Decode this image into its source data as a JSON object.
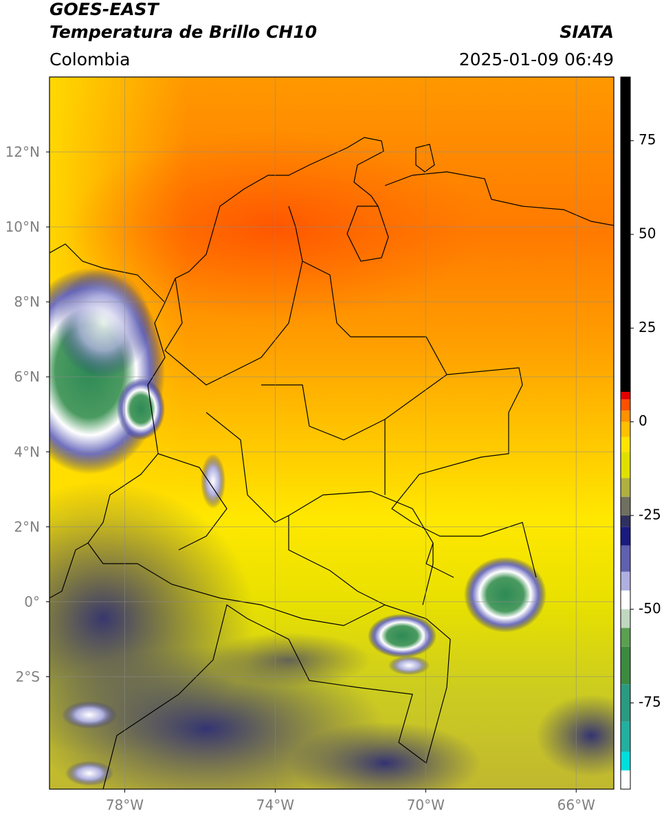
{
  "header": {
    "title": "GOES-EAST",
    "subtitle": "Temperatura de Brillo CH10",
    "region": "Colombia",
    "source": "SIATA",
    "datetime": "2025-01-09 06:49"
  },
  "map": {
    "lon_range": [
      -80,
      -65
    ],
    "lat_range": [
      -5,
      14
    ],
    "grid": true,
    "lon_ticks": [
      {
        "value": -78,
        "label": "78°W"
      },
      {
        "value": -74,
        "label": "74°W"
      },
      {
        "value": -70,
        "label": "70°W"
      },
      {
        "value": -66,
        "label": "66°W"
      }
    ],
    "lat_ticks": [
      {
        "value": 12,
        "label": "12°N"
      },
      {
        "value": 10,
        "label": "10°N"
      },
      {
        "value": 8,
        "label": "8°N"
      },
      {
        "value": 6,
        "label": "6°N"
      },
      {
        "value": 4,
        "label": "4°N"
      },
      {
        "value": 2,
        "label": "2°N"
      },
      {
        "value": 0,
        "label": "0°"
      },
      {
        "value": -2,
        "label": "2°S"
      }
    ]
  },
  "colorbar": {
    "range": [
      -98,
      92
    ],
    "ticks": [
      75,
      50,
      25,
      0,
      -25,
      -50,
      -75
    ],
    "bands": [
      {
        "value": -98,
        "color": "#ffffff"
      },
      {
        "value": -93,
        "color": "#00dede"
      },
      {
        "value": -88,
        "color": "#22b0a0"
      },
      {
        "value": -80,
        "color": "#2a9a80"
      },
      {
        "value": -70,
        "color": "#3a8a40"
      },
      {
        "value": -60,
        "color": "#5aa050"
      },
      {
        "value": -55,
        "color": "#c0d8c0"
      },
      {
        "value": -50,
        "color": "#ffffff"
      },
      {
        "value": -45,
        "color": "#b0b0e0"
      },
      {
        "value": -40,
        "color": "#6060b0"
      },
      {
        "value": -33,
        "color": "#1a1a80"
      },
      {
        "value": -28,
        "color": "#303060"
      },
      {
        "value": -25,
        "color": "#707060"
      },
      {
        "value": -20,
        "color": "#b0b040"
      },
      {
        "value": -15,
        "color": "#e0e000"
      },
      {
        "value": -8,
        "color": "#ffe400"
      },
      {
        "value": -4,
        "color": "#ffc000"
      },
      {
        "value": 0,
        "color": "#ff9000"
      },
      {
        "value": 3,
        "color": "#ff5000"
      },
      {
        "value": 6,
        "color": "#e00000"
      },
      {
        "value": 8,
        "color": "#000000"
      }
    ]
  }
}
